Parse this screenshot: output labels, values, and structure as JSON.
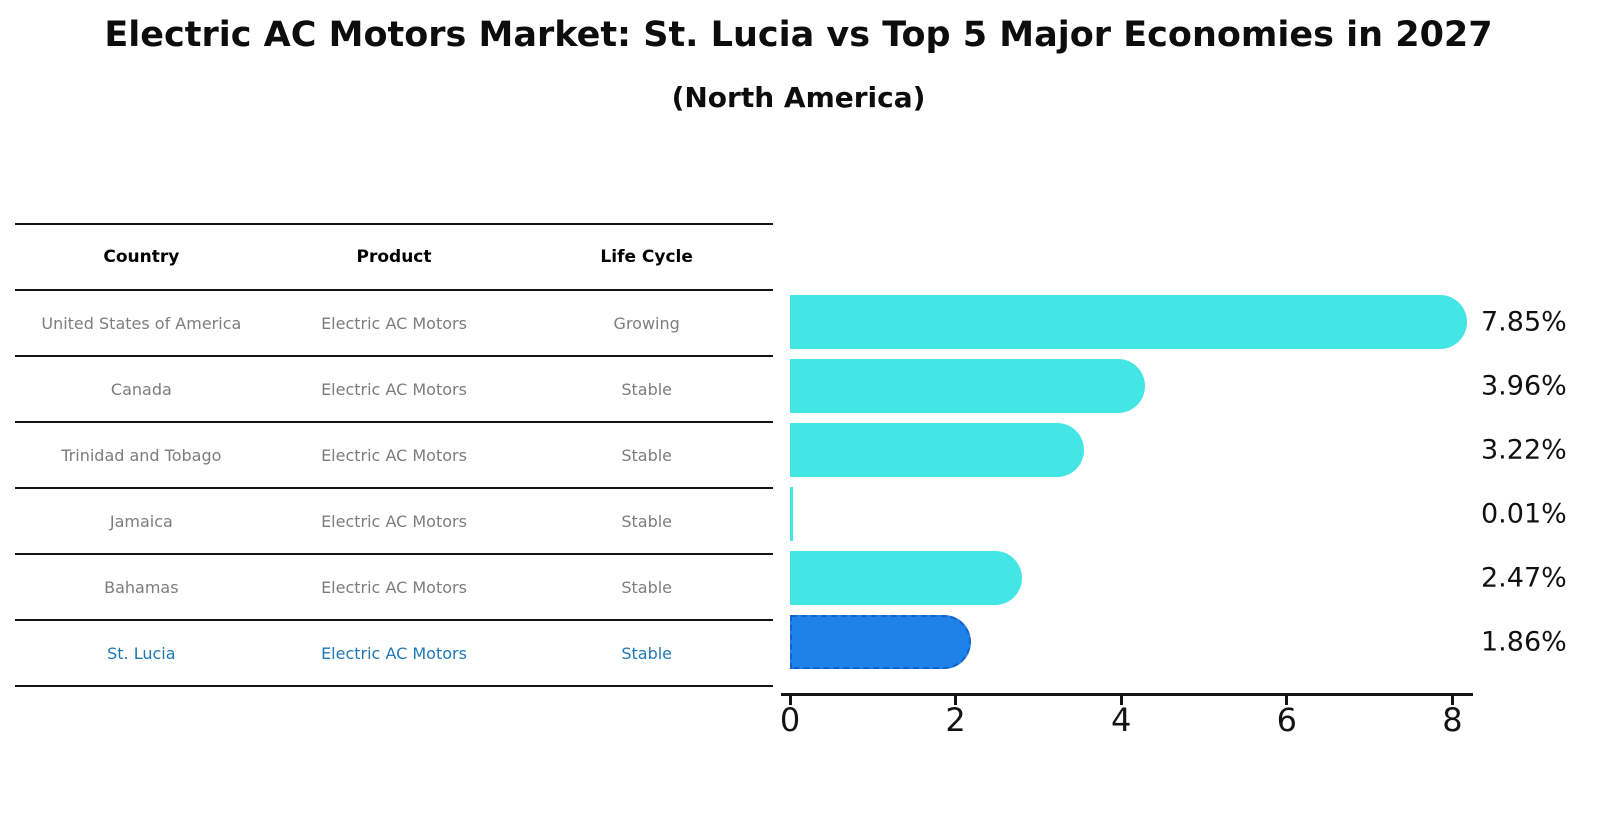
{
  "title": "Electric AC Motors Market: St. Lucia vs Top 5 Major Economies in 2027",
  "subtitle": "(North America)",
  "table": {
    "headers": [
      "Country",
      "Product",
      "Life Cycle"
    ],
    "rows": [
      {
        "country": "United States of America",
        "product": "Electric AC Motors",
        "life_cycle": "Growing",
        "highlight": false
      },
      {
        "country": "Canada",
        "product": "Electric AC Motors",
        "life_cycle": "Stable",
        "highlight": false
      },
      {
        "country": "Trinidad and Tobago",
        "product": "Electric AC Motors",
        "life_cycle": "Stable",
        "highlight": false
      },
      {
        "country": "Jamaica",
        "product": "Electric AC Motors",
        "life_cycle": "Stable",
        "highlight": false
      },
      {
        "country": "Bahamas",
        "product": "Electric AC Motors",
        "life_cycle": "Stable",
        "highlight": false
      },
      {
        "country": "St. Lucia",
        "product": "Electric AC Motors",
        "life_cycle": "Stable",
        "highlight": true
      }
    ]
  },
  "chart_data": {
    "type": "bar",
    "orientation": "horizontal",
    "title": "Electric AC Motors Market: St. Lucia vs Top 5 Major Economies in 2027 (North America)",
    "categories": [
      "United States of America",
      "Canada",
      "Trinidad and Tobago",
      "Jamaica",
      "Bahamas",
      "St. Lucia"
    ],
    "values": [
      7.85,
      3.96,
      3.22,
      0.01,
      2.47,
      1.86
    ],
    "labels": [
      "7.85%",
      "3.96%",
      "3.22%",
      "0.01%",
      "2.47%",
      "1.86%"
    ],
    "x_ticks": [
      "0",
      "2",
      "4",
      "6",
      "8"
    ],
    "x_tick_values": [
      0,
      2,
      4,
      6,
      8
    ],
    "xlim": [
      0,
      8.25
    ],
    "xlabel": "",
    "ylabel": "",
    "grid": false,
    "legend": false,
    "highlight_index": 5
  },
  "colors": {
    "bar": "#43E6E4",
    "highlight_bar": "#1E82E8",
    "highlight_border": "#1464C8",
    "highlight_text": "#1F77B4",
    "text_gray": "#7D7D7D",
    "line": "#141414"
  }
}
